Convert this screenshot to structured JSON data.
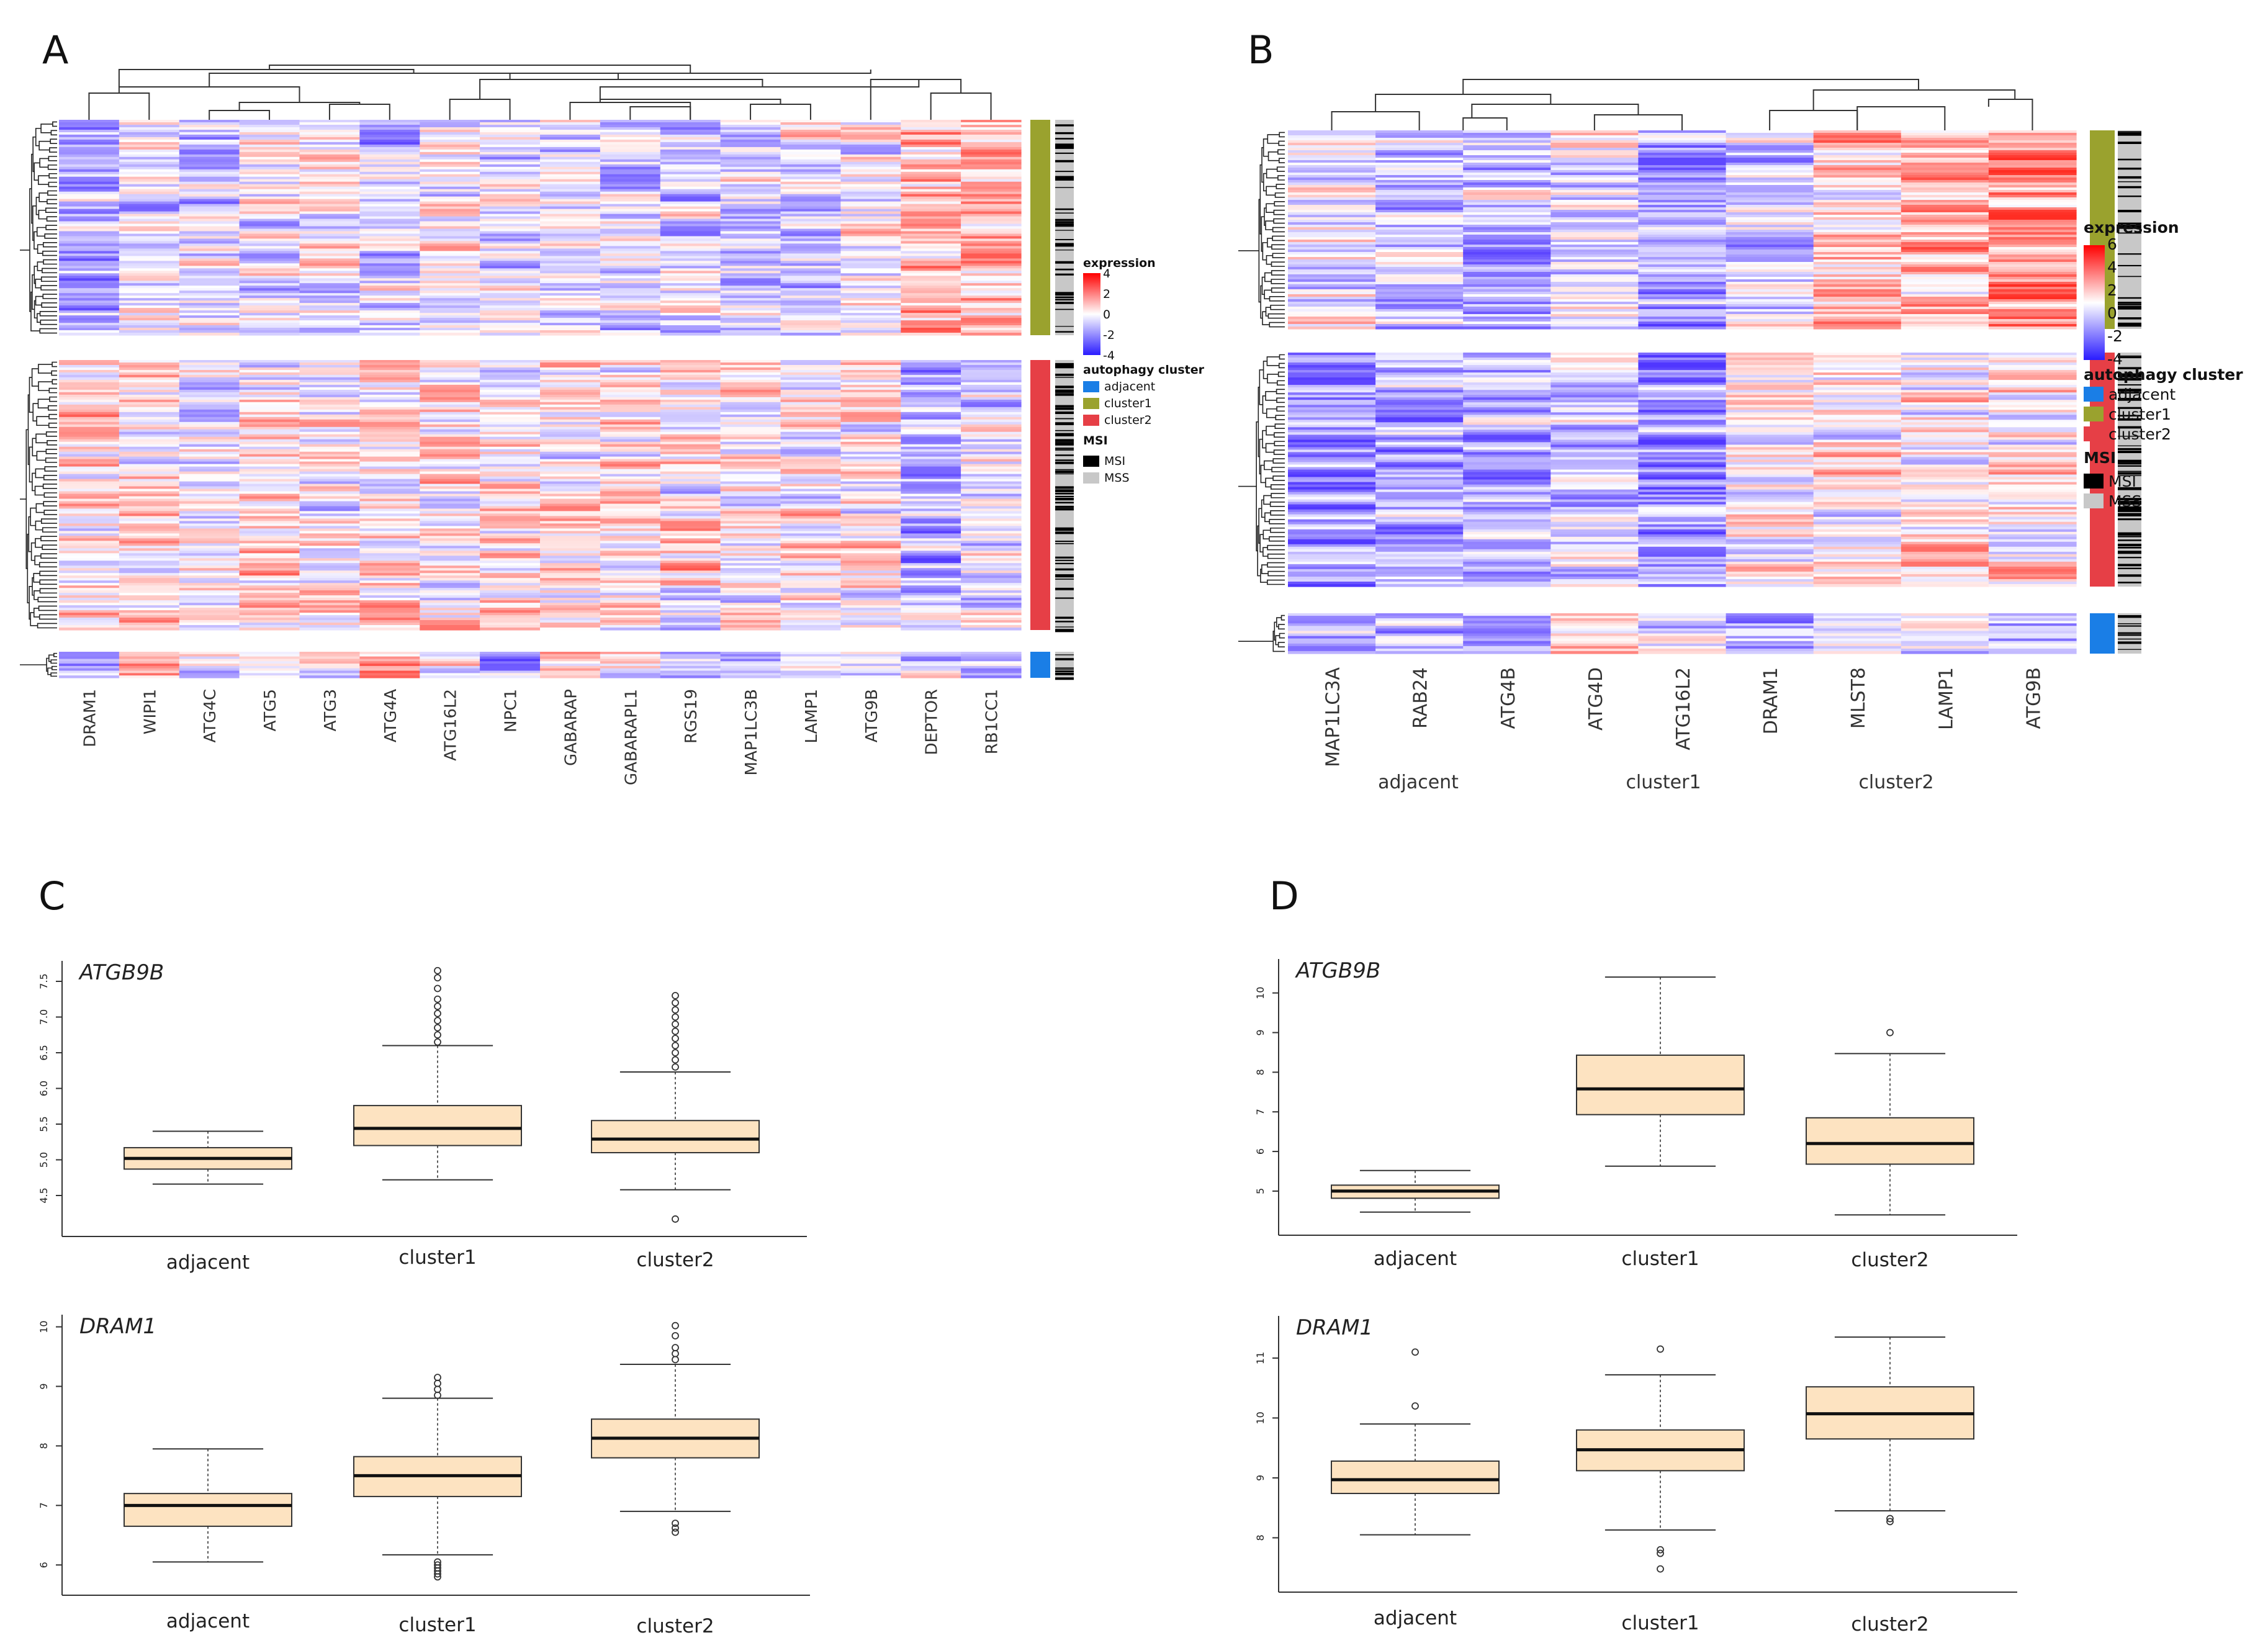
{
  "panels": [
    "A",
    "B",
    "C",
    "D"
  ],
  "colors": {
    "cluster1": "#9aa22e",
    "cluster2": "#e63f46",
    "adjacent": "#1a7ee6",
    "msi": "#000000",
    "mss": "#c8c8c8",
    "box_fill": "#fde3c1"
  },
  "chart_data": [
    {
      "panel": "A",
      "type": "heatmap",
      "genes": [
        "DRAM1",
        "WIPI1",
        "ATG4C",
        "ATG5",
        "ATG3",
        "ATG4A",
        "ATG16L2",
        "NPC1",
        "GABARAP",
        "GABARAPL1",
        "RGS19",
        "MAP1LC3B",
        "LAMP1",
        "ATG9B",
        "DEPTOR",
        "RB1CC1"
      ],
      "row_groups": [
        "cluster1",
        "cluster2",
        "adjacent"
      ],
      "legend": {
        "expression_title": "expression",
        "expression_ticks": [
          "4",
          "2",
          "0",
          "-2",
          "-4"
        ],
        "cluster_title": "autophagy  cluster",
        "cluster_items": [
          "adjacent",
          "cluster1",
          "cluster2"
        ],
        "msi_title": "MSI",
        "msi_items": [
          "MSI",
          "MSS"
        ]
      }
    },
    {
      "panel": "B",
      "type": "heatmap",
      "genes": [
        "MAP1LC3A",
        "RAB24",
        "ATG4B",
        "ATG4D",
        "ATG16L2",
        "DRAM1",
        "MLST8",
        "LAMP1",
        "ATG9B"
      ],
      "row_groups": [
        "cluster1",
        "cluster2",
        "adjacent"
      ],
      "group_labels_below": [
        "adjacent",
        "cluster1",
        "cluster2"
      ],
      "legend": {
        "expression_title": "expression",
        "expression_ticks": [
          "6",
          "4",
          "2",
          "0",
          "-2",
          "-4"
        ],
        "cluster_title": "autophagy  cluster",
        "cluster_items": [
          "adjacent",
          "cluster1",
          "cluster2"
        ],
        "msi_title": "MSI",
        "msi_items": [
          "MSI",
          "MSS"
        ]
      }
    },
    {
      "panel": "C",
      "type": "boxplot",
      "title": "ATGB9B",
      "categories": [
        "adjacent",
        "cluster1",
        "cluster2"
      ],
      "ylim": [
        4.1,
        7.7
      ],
      "yticks": [
        "4.5",
        "5.0",
        "5.5",
        "6.0",
        "6.5",
        "7.0",
        "7.5"
      ],
      "boxes": [
        {
          "min": 4.66,
          "q1": 4.87,
          "median": 5.02,
          "q3": 5.17,
          "max": 5.4
        },
        {
          "min": 4.72,
          "q1": 5.2,
          "median": 5.44,
          "q3": 5.76,
          "max": 6.6
        },
        {
          "min": 4.58,
          "q1": 5.1,
          "median": 5.29,
          "q3": 5.55,
          "max": 6.23
        }
      ],
      "outliers": [
        [],
        [
          6.65,
          6.75,
          6.85,
          6.95,
          7.05,
          7.15,
          7.25,
          7.4,
          7.55,
          7.65
        ],
        [
          4.17,
          6.3,
          6.4,
          6.5,
          6.6,
          6.7,
          6.8,
          6.9,
          7.0,
          7.1,
          7.2,
          7.3
        ]
      ]
    },
    {
      "panel": "C",
      "type": "boxplot",
      "title": "DRAM1",
      "categories": [
        "adjacent",
        "cluster1",
        "cluster2"
      ],
      "ylim": [
        5.7,
        10.1
      ],
      "yticks": [
        "6",
        "7",
        "8",
        "9",
        "10"
      ],
      "boxes": [
        {
          "min": 6.05,
          "q1": 6.65,
          "median": 7.0,
          "q3": 7.2,
          "max": 7.95
        },
        {
          "min": 6.17,
          "q1": 7.15,
          "median": 7.5,
          "q3": 7.82,
          "max": 8.8
        },
        {
          "min": 6.9,
          "q1": 7.8,
          "median": 8.13,
          "q3": 8.45,
          "max": 9.37
        }
      ],
      "outliers": [
        [],
        [
          5.8,
          5.85,
          5.9,
          5.95,
          6.0,
          6.05,
          8.85,
          8.95,
          9.05,
          9.15
        ],
        [
          6.55,
          6.62,
          6.7,
          9.45,
          9.55,
          9.65,
          9.85,
          10.02
        ]
      ]
    },
    {
      "panel": "D",
      "type": "boxplot",
      "title": "ATGB9B",
      "categories": [
        "adjacent",
        "cluster1",
        "cluster2"
      ],
      "ylim": [
        4.2,
        10.7
      ],
      "yticks": [
        "5",
        "6",
        "7",
        "8",
        "9",
        "10"
      ],
      "boxes": [
        {
          "min": 4.47,
          "q1": 4.82,
          "median": 5.0,
          "q3": 5.15,
          "max": 5.52
        },
        {
          "min": 5.63,
          "q1": 6.93,
          "median": 7.58,
          "q3": 8.43,
          "max": 10.4
        },
        {
          "min": 4.4,
          "q1": 5.68,
          "median": 6.2,
          "q3": 6.85,
          "max": 8.47
        }
      ],
      "outliers": [
        [],
        [],
        [
          9.0
        ]
      ]
    },
    {
      "panel": "D",
      "type": "boxplot",
      "title": "DRAM1",
      "categories": [
        "adjacent",
        "cluster1",
        "cluster2"
      ],
      "ylim": [
        7.3,
        11.6
      ],
      "yticks": [
        "8",
        "9",
        "10",
        "11"
      ],
      "boxes": [
        {
          "min": 8.05,
          "q1": 8.74,
          "median": 8.97,
          "q3": 9.28,
          "max": 9.9
        },
        {
          "min": 8.13,
          "q1": 9.12,
          "median": 9.47,
          "q3": 9.8,
          "max": 10.72
        },
        {
          "min": 8.45,
          "q1": 9.65,
          "median": 10.07,
          "q3": 10.52,
          "max": 11.35
        }
      ],
      "outliers": [
        [
          10.2,
          11.1
        ],
        [
          7.48,
          7.74,
          7.8,
          11.15
        ],
        [
          8.27,
          8.32
        ]
      ]
    }
  ]
}
